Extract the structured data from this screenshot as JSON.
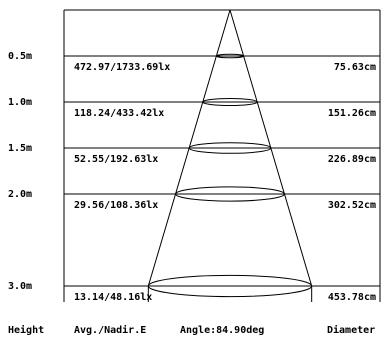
{
  "chart_data": {
    "type": "beam-angle-diagram",
    "angle_label": "Angle:84.90deg",
    "footer": {
      "height_label": "Height",
      "illuminance_label": "Avg./Nadir.E",
      "diameter_label": "Diameter"
    },
    "rows": [
      {
        "height": "0.5m",
        "height_value": 0.5,
        "illuminance": "472.97/1733.69lx",
        "diameter": "75.63cm",
        "diameter_value": 75.63
      },
      {
        "height": "1.0m",
        "height_value": 1.0,
        "illuminance": "118.24/433.42lx",
        "diameter": "151.26cm",
        "diameter_value": 151.26
      },
      {
        "height": "1.5m",
        "height_value": 1.5,
        "illuminance": "52.55/192.63lx",
        "diameter": "226.89cm",
        "diameter_value": 226.89
      },
      {
        "height": "2.0m",
        "height_value": 2.0,
        "illuminance": "29.56/108.36lx",
        "diameter": "302.52cm",
        "diameter_value": 302.52
      },
      {
        "height": "3.0m",
        "height_value": 3.0,
        "illuminance": "13.14/48.16lx",
        "diameter": "453.78cm",
        "diameter_value": 453.78
      }
    ]
  }
}
